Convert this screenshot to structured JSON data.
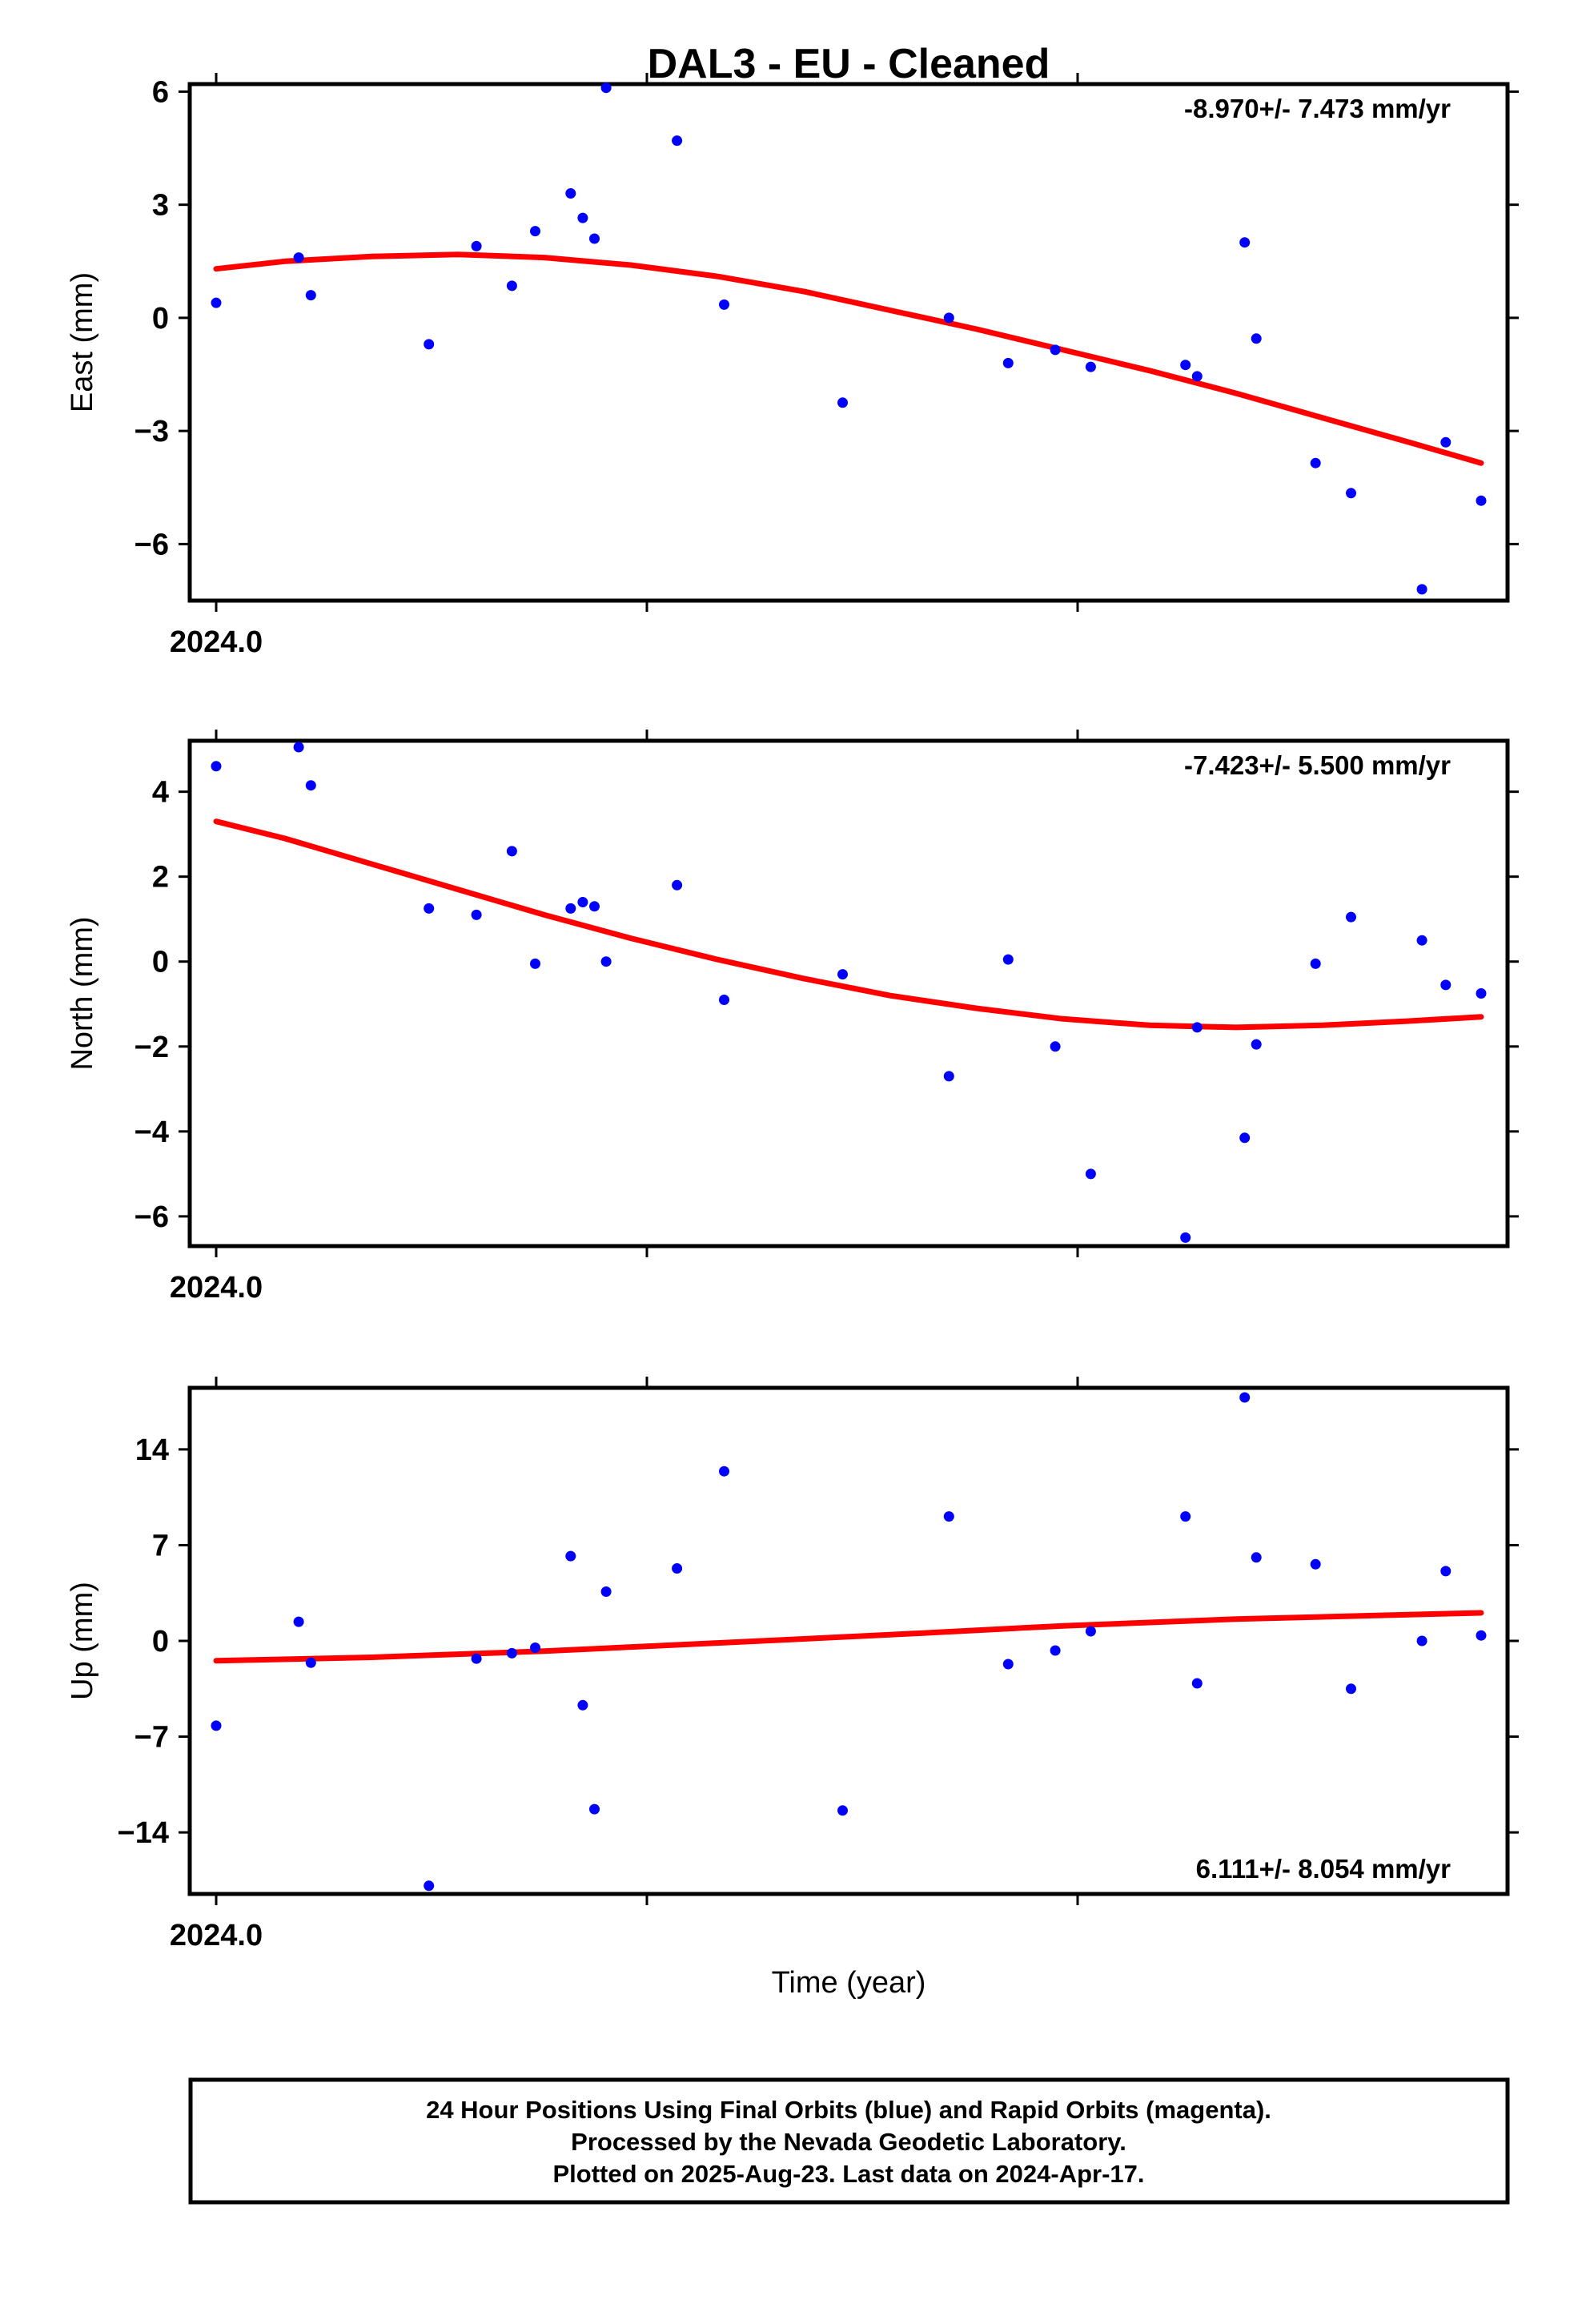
{
  "title": "DAL3  - EU - Cleaned",
  "xlabel": "Time (year)",
  "footer": {
    "line1": "24 Hour Positions Using Final Orbits (blue) and Rapid Orbits (magenta).",
    "line2": "Processed by the Nevada Geodetic Laboratory.",
    "line3": "Plotted on 2025-Aug-23. Last data on 2024-Apr-17."
  },
  "colors": {
    "points": "#0000ff",
    "fit": "#ff0000",
    "frame": "#000000"
  },
  "chart_data": [
    {
      "type": "scatter",
      "component": "East",
      "ylabel": "East (mm)",
      "rate_text": "-8.970+/- 7.473 mm/yr",
      "xlim": [
        2023.998,
        2024.3
      ],
      "ylim": [
        -7.5,
        6.2
      ],
      "yticks": [
        -6,
        -3,
        0,
        3,
        6
      ],
      "ytick_labels": [
        "−6",
        "−3",
        "0",
        "3",
        "6"
      ],
      "xtick_label": "2024.0",
      "grid": false,
      "points": [
        [
          2024.0041,
          0.4
        ],
        [
          2024.0232,
          1.6
        ],
        [
          2024.026,
          0.6
        ],
        [
          2024.0533,
          -0.7
        ],
        [
          2024.0643,
          1.9
        ],
        [
          2024.0725,
          0.85
        ],
        [
          2024.0779,
          2.3
        ],
        [
          2024.0861,
          3.3
        ],
        [
          2024.0889,
          2.65
        ],
        [
          2024.0916,
          2.1
        ],
        [
          2024.0943,
          6.1
        ],
        [
          2024.1107,
          4.7
        ],
        [
          2024.1216,
          0.35
        ],
        [
          2024.149,
          -2.25
        ],
        [
          2024.1736,
          0.0
        ],
        [
          2024.1873,
          -1.2
        ],
        [
          2024.1982,
          -0.85
        ],
        [
          2024.2064,
          -1.3
        ],
        [
          2024.2283,
          -1.25
        ],
        [
          2024.231,
          -1.55
        ],
        [
          2024.242,
          2.0
        ],
        [
          2024.2447,
          -0.55
        ],
        [
          2024.2584,
          -3.85
        ],
        [
          2024.2666,
          -4.65
        ],
        [
          2024.283,
          -7.2
        ],
        [
          2024.2885,
          -3.3
        ],
        [
          2024.2967,
          -4.85
        ]
      ],
      "fit": [
        [
          2024.0041,
          1.3
        ],
        [
          2024.02,
          1.5
        ],
        [
          2024.04,
          1.63
        ],
        [
          2024.06,
          1.68
        ],
        [
          2024.08,
          1.6
        ],
        [
          2024.1,
          1.4
        ],
        [
          2024.12,
          1.1
        ],
        [
          2024.14,
          0.7
        ],
        [
          2024.16,
          0.2
        ],
        [
          2024.18,
          -0.3
        ],
        [
          2024.2,
          -0.85
        ],
        [
          2024.22,
          -1.4
        ],
        [
          2024.24,
          -2.0
        ],
        [
          2024.26,
          -2.65
        ],
        [
          2024.28,
          -3.3
        ],
        [
          2024.2967,
          -3.85
        ]
      ]
    },
    {
      "type": "scatter",
      "component": "North",
      "ylabel": "North (mm)",
      "rate_text": "-7.423+/- 5.500 mm/yr",
      "xlim": [
        2023.998,
        2024.3
      ],
      "ylim": [
        -6.7,
        5.2
      ],
      "yticks": [
        -6,
        -4,
        -2,
        0,
        2,
        4
      ],
      "ytick_labels": [
        "−6",
        "−4",
        "−2",
        "0",
        "2",
        "4"
      ],
      "xtick_label": "2024.0",
      "grid": false,
      "points": [
        [
          2024.0041,
          4.6
        ],
        [
          2024.0232,
          5.05
        ],
        [
          2024.026,
          4.15
        ],
        [
          2024.0533,
          1.25
        ],
        [
          2024.0643,
          1.1
        ],
        [
          2024.0725,
          2.6
        ],
        [
          2024.0779,
          -0.05
        ],
        [
          2024.0861,
          1.25
        ],
        [
          2024.0889,
          1.4
        ],
        [
          2024.0916,
          1.3
        ],
        [
          2024.0943,
          0.0
        ],
        [
          2024.1107,
          1.8
        ],
        [
          2024.1216,
          -0.9
        ],
        [
          2024.149,
          -0.3
        ],
        [
          2024.1736,
          -2.7
        ],
        [
          2024.1873,
          0.05
        ],
        [
          2024.1982,
          -2.0
        ],
        [
          2024.2064,
          -5.0
        ],
        [
          2024.2283,
          -6.5
        ],
        [
          2024.231,
          -1.55
        ],
        [
          2024.242,
          -4.15
        ],
        [
          2024.2447,
          -1.95
        ],
        [
          2024.2584,
          -0.05
        ],
        [
          2024.2666,
          1.05
        ],
        [
          2024.283,
          0.5
        ],
        [
          2024.2885,
          -0.55
        ],
        [
          2024.2967,
          -0.75
        ]
      ],
      "fit": [
        [
          2024.0041,
          3.3
        ],
        [
          2024.02,
          2.9
        ],
        [
          2024.04,
          2.3
        ],
        [
          2024.06,
          1.7
        ],
        [
          2024.08,
          1.1
        ],
        [
          2024.1,
          0.55
        ],
        [
          2024.12,
          0.05
        ],
        [
          2024.14,
          -0.4
        ],
        [
          2024.16,
          -0.8
        ],
        [
          2024.18,
          -1.1
        ],
        [
          2024.2,
          -1.35
        ],
        [
          2024.22,
          -1.5
        ],
        [
          2024.24,
          -1.55
        ],
        [
          2024.26,
          -1.5
        ],
        [
          2024.28,
          -1.4
        ],
        [
          2024.2967,
          -1.3
        ]
      ]
    },
    {
      "type": "scatter",
      "component": "Up",
      "ylabel": "Up (mm)",
      "rate_text": "6.111+/- 8.054 mm/yr",
      "xlim": [
        2023.998,
        2024.3
      ],
      "ylim": [
        -18.5,
        18.5
      ],
      "yticks": [
        -14,
        -7,
        0,
        7,
        14
      ],
      "ytick_labels": [
        "−14",
        "−7",
        "0",
        "7",
        "14"
      ],
      "xtick_label": "2024.0",
      "grid": false,
      "points": [
        [
          2024.0041,
          -6.2
        ],
        [
          2024.0232,
          1.4
        ],
        [
          2024.026,
          -1.6
        ],
        [
          2024.0533,
          -17.9
        ],
        [
          2024.0643,
          -1.3
        ],
        [
          2024.0725,
          -0.9
        ],
        [
          2024.0779,
          -0.5
        ],
        [
          2024.0861,
          6.2
        ],
        [
          2024.0889,
          -4.7
        ],
        [
          2024.0916,
          -12.3
        ],
        [
          2024.0943,
          3.6
        ],
        [
          2024.1107,
          5.3
        ],
        [
          2024.1216,
          12.4
        ],
        [
          2024.149,
          -12.4
        ],
        [
          2024.1736,
          9.1
        ],
        [
          2024.1873,
          -1.7
        ],
        [
          2024.1982,
          -0.7
        ],
        [
          2024.2064,
          0.7
        ],
        [
          2024.2283,
          9.1
        ],
        [
          2024.231,
          -3.1
        ],
        [
          2024.242,
          17.8
        ],
        [
          2024.2447,
          6.1
        ],
        [
          2024.2584,
          5.6
        ],
        [
          2024.2666,
          -3.5
        ],
        [
          2024.283,
          0.0
        ],
        [
          2024.2885,
          5.1
        ],
        [
          2024.2967,
          0.4
        ]
      ],
      "fit": [
        [
          2024.0041,
          -1.45
        ],
        [
          2024.04,
          -1.2
        ],
        [
          2024.08,
          -0.75
        ],
        [
          2024.12,
          -0.15
        ],
        [
          2024.16,
          0.45
        ],
        [
          2024.2,
          1.1
        ],
        [
          2024.24,
          1.6
        ],
        [
          2024.2967,
          2.05
        ]
      ]
    }
  ]
}
